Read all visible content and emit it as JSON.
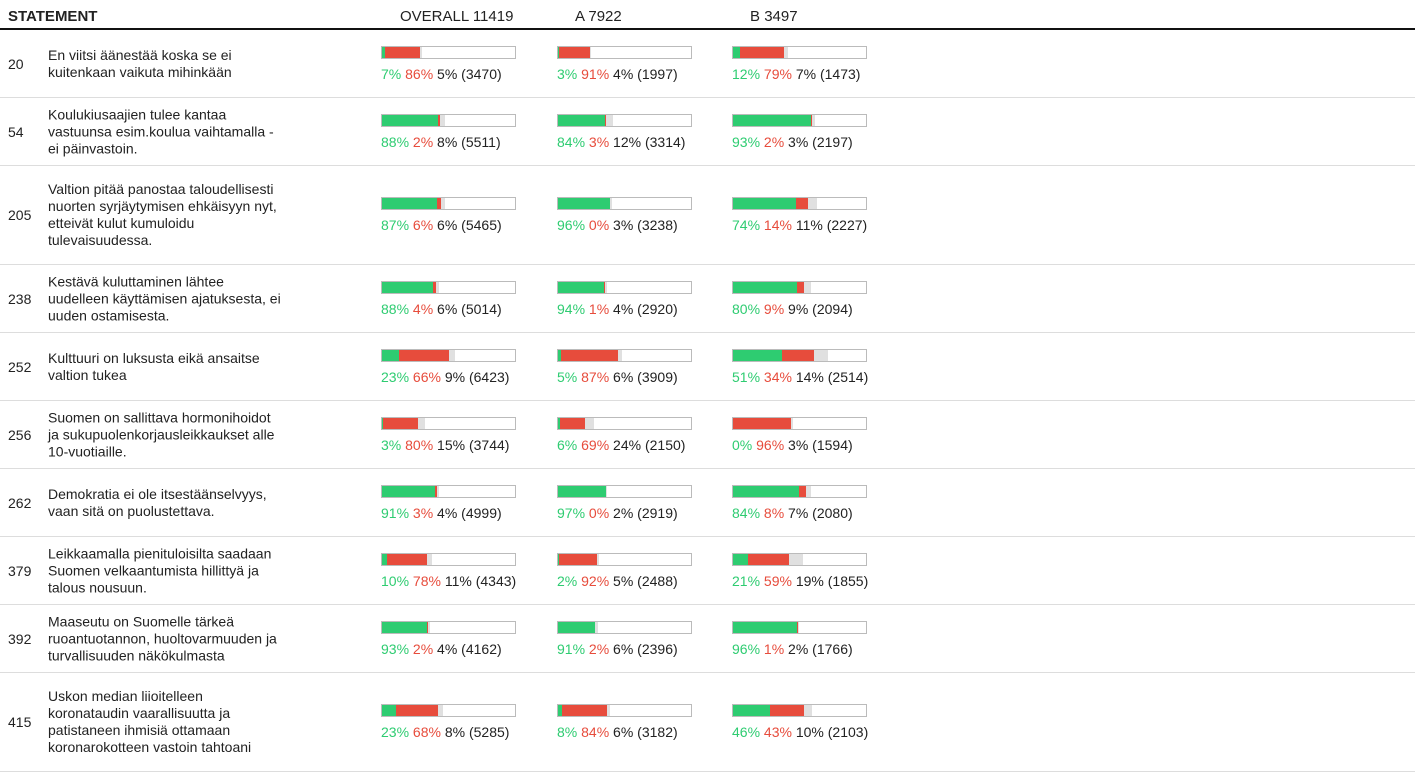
{
  "header": {
    "statement": "STATEMENT",
    "groups": [
      {
        "name": "OVERALL",
        "count": 11419
      },
      {
        "name": "A",
        "count": 7922
      },
      {
        "name": "B",
        "count": 3497
      }
    ]
  },
  "rows": [
    {
      "id": 20,
      "lines": [
        "En viitsi äänestää koska se ei",
        "kuitenkaan vaikuta mihinkään"
      ],
      "groups": [
        {
          "values": [
            7,
            86,
            5
          ],
          "value_labels": [
            "7%",
            "86%",
            "5%"
          ],
          "count": 3470,
          "count_label": "(3470)"
        },
        {
          "values": [
            3,
            91,
            4
          ],
          "value_labels": [
            "3%",
            "91%",
            "4%"
          ],
          "count": 1997,
          "count_label": "(1997)"
        },
        {
          "values": [
            12,
            79,
            7
          ],
          "value_labels": [
            "12%",
            "79%",
            "7%"
          ],
          "count": 1473,
          "count_label": "(1473)"
        }
      ]
    },
    {
      "id": 54,
      "lines": [
        "Koulukiusaajien tulee kantaa",
        "vastuunsa esim.koulua vaihtamalla -",
        "ei päinvastoin."
      ],
      "groups": [
        {
          "values": [
            88,
            2,
            8
          ],
          "value_labels": [
            "88%",
            "2%",
            "8%"
          ],
          "count": 5511,
          "count_label": "(5511)"
        },
        {
          "values": [
            84,
            3,
            12
          ],
          "value_labels": [
            "84%",
            "3%",
            "12%"
          ],
          "count": 3314,
          "count_label": "(3314)"
        },
        {
          "values": [
            93,
            2,
            3
          ],
          "value_labels": [
            "93%",
            "2%",
            "3%"
          ],
          "count": 2197,
          "count_label": "(2197)"
        }
      ]
    },
    {
      "id": 205,
      "lines": [
        "Valtion pitää panostaa taloudellisesti",
        "nuorten syrjäytymisen ehkäisyyn nyt,",
        "etteivät kulut kumuloidu",
        "tulevaisuudessa."
      ],
      "groups": [
        {
          "values": [
            87,
            6,
            6
          ],
          "value_labels": [
            "87%",
            "6%",
            "6%"
          ],
          "count": 5465,
          "count_label": "(5465)"
        },
        {
          "values": [
            96,
            0,
            3
          ],
          "value_labels": [
            "96%",
            "0%",
            "3%"
          ],
          "count": 3238,
          "count_label": "(3238)"
        },
        {
          "values": [
            74,
            14,
            11
          ],
          "value_labels": [
            "74%",
            "14%",
            "11%"
          ],
          "count": 2227,
          "count_label": "(2227)"
        }
      ]
    },
    {
      "id": 238,
      "lines": [
        "Kestävä kuluttaminen lähtee",
        "uudelleen käyttämisen ajatuksesta, ei",
        "uuden ostamisesta."
      ],
      "groups": [
        {
          "values": [
            88,
            4,
            6
          ],
          "value_labels": [
            "88%",
            "4%",
            "6%"
          ],
          "count": 5014,
          "count_label": "(5014)"
        },
        {
          "values": [
            94,
            1,
            4
          ],
          "value_labels": [
            "94%",
            "1%",
            "4%"
          ],
          "count": 2920,
          "count_label": "(2920)"
        },
        {
          "values": [
            80,
            9,
            9
          ],
          "value_labels": [
            "80%",
            "9%",
            "9%"
          ],
          "count": 2094,
          "count_label": "(2094)"
        }
      ]
    },
    {
      "id": 252,
      "lines": [
        "Kulttuuri on luksusta eikä ansaitse",
        "valtion tukea"
      ],
      "groups": [
        {
          "values": [
            23,
            66,
            9
          ],
          "value_labels": [
            "23%",
            "66%",
            "9%"
          ],
          "count": 6423,
          "count_label": "(6423)"
        },
        {
          "values": [
            5,
            87,
            6
          ],
          "value_labels": [
            "5%",
            "87%",
            "6%"
          ],
          "count": 3909,
          "count_label": "(3909)"
        },
        {
          "values": [
            51,
            34,
            14
          ],
          "value_labels": [
            "51%",
            "34%",
            "14%"
          ],
          "count": 2514,
          "count_label": "(2514)"
        }
      ]
    },
    {
      "id": 256,
      "lines": [
        "Suomen on sallittava hormonihoidot",
        "ja sukupuolenkorjausleikkaukset alle",
        "10-vuotiaille."
      ],
      "groups": [
        {
          "values": [
            3,
            80,
            15
          ],
          "value_labels": [
            "3%",
            "80%",
            "15%"
          ],
          "count": 3744,
          "count_label": "(3744)"
        },
        {
          "values": [
            6,
            69,
            24
          ],
          "value_labels": [
            "6%",
            "69%",
            "24%"
          ],
          "count": 2150,
          "count_label": "(2150)"
        },
        {
          "values": [
            0,
            96,
            3
          ],
          "value_labels": [
            "0%",
            "96%",
            "3%"
          ],
          "count": 1594,
          "count_label": "(1594)"
        }
      ]
    },
    {
      "id": 262,
      "lines": [
        "Demokratia ei ole itsestäänselvyys,",
        "vaan sitä on puolustettava."
      ],
      "groups": [
        {
          "values": [
            91,
            3,
            4
          ],
          "value_labels": [
            "91%",
            "3%",
            "4%"
          ],
          "count": 4999,
          "count_label": "(4999)"
        },
        {
          "values": [
            97,
            0,
            2
          ],
          "value_labels": [
            "97%",
            "0%",
            "2%"
          ],
          "count": 2919,
          "count_label": "(2919)"
        },
        {
          "values": [
            84,
            8,
            7
          ],
          "value_labels": [
            "84%",
            "8%",
            "7%"
          ],
          "count": 2080,
          "count_label": "(2080)"
        }
      ]
    },
    {
      "id": 379,
      "lines": [
        "Leikkaamalla pienituloisilta saadaan",
        "Suomen velkaantumista hillittyä ja",
        "talous nousuun."
      ],
      "groups": [
        {
          "values": [
            10,
            78,
            11
          ],
          "value_labels": [
            "10%",
            "78%",
            "11%"
          ],
          "count": 4343,
          "count_label": "(4343)"
        },
        {
          "values": [
            2,
            92,
            5
          ],
          "value_labels": [
            "2%",
            "92%",
            "5%"
          ],
          "count": 2488,
          "count_label": "(2488)"
        },
        {
          "values": [
            21,
            59,
            19
          ],
          "value_labels": [
            "21%",
            "59%",
            "19%"
          ],
          "count": 1855,
          "count_label": "(1855)"
        }
      ]
    },
    {
      "id": 392,
      "lines": [
        "Maaseutu on Suomelle tärkeä",
        "ruoantuotannon, huoltovarmuuden ja",
        "turvallisuuden näkökulmasta"
      ],
      "groups": [
        {
          "values": [
            93,
            2,
            4
          ],
          "value_labels": [
            "93%",
            "2%",
            "4%"
          ],
          "count": 4162,
          "count_label": "(4162)"
        },
        {
          "values": [
            91,
            2,
            6
          ],
          "value_labels": [
            "91%",
            "2%",
            "6%"
          ],
          "count": 2396,
          "count_label": "(2396)"
        },
        {
          "values": [
            96,
            1,
            2
          ],
          "value_labels": [
            "96%",
            "1%",
            "2%"
          ],
          "count": 1766,
          "count_label": "(1766)"
        }
      ]
    },
    {
      "id": 415,
      "lines": [
        "Uskon median liioitelleen",
        "koronataudin vaarallisuutta ja",
        "patistaneen ihmisiä ottamaan",
        "koronarokotteen vastoin tahtoani"
      ],
      "groups": [
        {
          "values": [
            23,
            68,
            8
          ],
          "value_labels": [
            "23%",
            "68%",
            "8%"
          ],
          "count": 5285,
          "count_label": "(5285)"
        },
        {
          "values": [
            8,
            84,
            6
          ],
          "value_labels": [
            "8%",
            "84%",
            "6%"
          ],
          "count": 3182,
          "count_label": "(3182)"
        },
        {
          "values": [
            46,
            43,
            10
          ],
          "value_labels": [
            "46%",
            "43%",
            "10%"
          ],
          "count": 2103,
          "count_label": "(2103)"
        }
      ]
    }
  ]
}
